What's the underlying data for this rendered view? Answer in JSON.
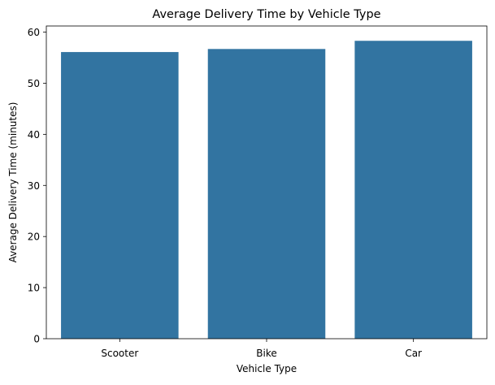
{
  "chart_data": {
    "type": "bar",
    "title": "Average Delivery Time by Vehicle Type",
    "xlabel": "Vehicle Type",
    "ylabel": "Average Delivery Time (minutes)",
    "categories": [
      "Scooter",
      "Bike",
      "Car"
    ],
    "values": [
      56.1,
      56.7,
      58.3
    ],
    "ylim": [
      0,
      61.2
    ],
    "yticks": [
      0,
      10,
      20,
      30,
      40,
      50,
      60
    ],
    "grid": false,
    "bar_color": "#3274a1"
  }
}
